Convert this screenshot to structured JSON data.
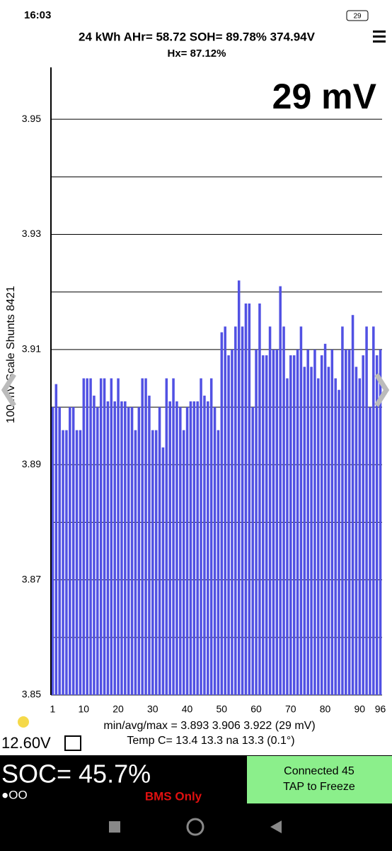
{
  "status": {
    "time": "16:03",
    "battery": "29"
  },
  "header": {
    "line1": "24 kWh  AHr= 58.72  SOH= 89.78%  374.94V",
    "line2": "Hx= 87.12%"
  },
  "spread": "29 mV",
  "stats": {
    "minmax": "min/avg/max = 3.893 3.906 3.922  (29 mV)",
    "temp": "Temp C= 13.4  13.3  na  13.3  (0.1°)",
    "aux": "12.60V"
  },
  "footer": {
    "soc": "SOC= 45.7%",
    "dots": "●OO",
    "mode": "BMS Only",
    "button1": "Connected 45",
    "button2": "TAP to Freeze"
  },
  "chart_data": {
    "type": "bar",
    "y_label": "100 mV Scale  Shunts 8421",
    "color": "#5151e3",
    "categories": [
      1,
      null,
      null,
      null,
      null,
      null,
      null,
      null,
      null,
      10,
      null,
      null,
      null,
      null,
      null,
      null,
      null,
      null,
      null,
      20,
      null,
      null,
      null,
      null,
      null,
      null,
      null,
      null,
      null,
      30,
      null,
      null,
      null,
      null,
      null,
      null,
      null,
      null,
      null,
      40,
      null,
      null,
      null,
      null,
      null,
      null,
      null,
      null,
      null,
      50,
      null,
      null,
      null,
      null,
      null,
      null,
      null,
      null,
      null,
      60,
      null,
      null,
      null,
      null,
      null,
      null,
      null,
      null,
      null,
      70,
      null,
      null,
      null,
      null,
      null,
      null,
      null,
      null,
      null,
      80,
      null,
      null,
      null,
      null,
      null,
      null,
      null,
      null,
      null,
      90,
      null,
      null,
      null,
      null,
      null,
      96
    ],
    "values": [
      3.9,
      3.904,
      3.9,
      3.896,
      3.896,
      3.9,
      3.9,
      3.896,
      3.896,
      3.905,
      3.905,
      3.905,
      3.902,
      3.9,
      3.905,
      3.905,
      3.901,
      3.905,
      3.901,
      3.905,
      3.901,
      3.901,
      3.9,
      3.9,
      3.896,
      3.9,
      3.905,
      3.905,
      3.902,
      3.896,
      3.896,
      3.9,
      3.893,
      3.905,
      3.901,
      3.905,
      3.901,
      3.9,
      3.896,
      3.9,
      3.901,
      3.901,
      3.901,
      3.905,
      3.902,
      3.901,
      3.905,
      3.9,
      3.896,
      3.913,
      3.914,
      3.909,
      3.91,
      3.914,
      3.922,
      3.914,
      3.918,
      3.918,
      3.9,
      3.91,
      3.918,
      3.909,
      3.909,
      3.914,
      3.91,
      3.91,
      3.921,
      3.914,
      3.905,
      3.909,
      3.909,
      3.91,
      3.914,
      3.907,
      3.91,
      3.907,
      3.91,
      3.905,
      3.909,
      3.911,
      3.907,
      3.91,
      3.905,
      3.903,
      3.914,
      3.91,
      3.91,
      3.916,
      3.907,
      3.905,
      3.909,
      3.914,
      3.9,
      3.914,
      3.909,
      3.91
    ],
    "ylim": [
      3.85,
      3.96
    ],
    "yticks": [
      3.95,
      3.93,
      3.91,
      3.89,
      3.87,
      3.85
    ],
    "minor_yticks": [
      3.94,
      3.92,
      3.9,
      3.88,
      3.86
    ],
    "grid": true
  }
}
